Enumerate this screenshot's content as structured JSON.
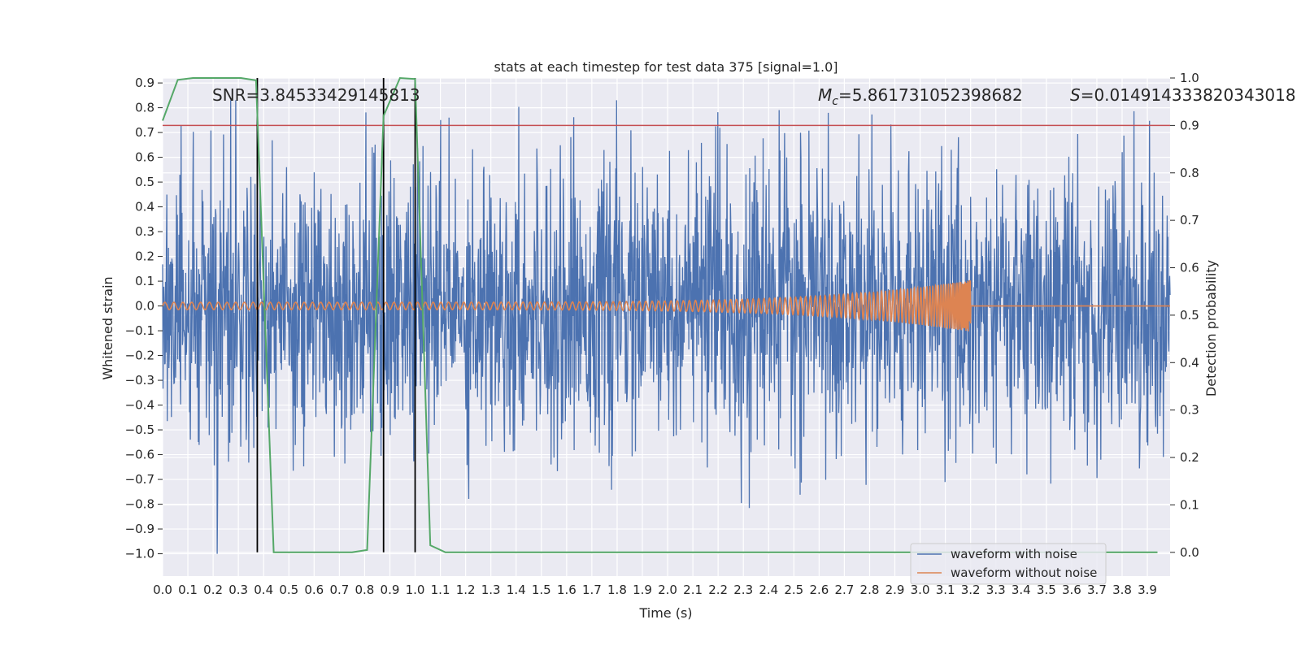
{
  "chart_data": {
    "type": "line",
    "title": "stats at each timestep for test data 375 [signal=1.0]",
    "xlabel": "Time (s)",
    "ylabel": "Whitened strain",
    "y2label": "Detection probability",
    "xlim": [
      0.0,
      3.99
    ],
    "ylim": [
      -1.09,
      0.92
    ],
    "y2lim": [
      -0.05,
      1.0
    ],
    "x_ticks": [
      "0.0",
      "0.1",
      "0.2",
      "0.3",
      "0.4",
      "0.5",
      "0.6",
      "0.7",
      "0.8",
      "0.9",
      "1.0",
      "1.1",
      "1.2",
      "1.3",
      "1.4",
      "1.5",
      "1.6",
      "1.7",
      "1.8",
      "1.9",
      "2.0",
      "2.1",
      "2.2",
      "2.3",
      "2.4",
      "2.5",
      "2.6",
      "2.7",
      "2.8",
      "2.9",
      "3.0",
      "3.1",
      "3.2",
      "3.3",
      "3.4",
      "3.5",
      "3.6",
      "3.7",
      "3.8",
      "3.9"
    ],
    "y_ticks": [
      "0.9",
      "0.8",
      "0.7",
      "0.6",
      "0.5",
      "0.4",
      "0.3",
      "0.2",
      "0.1",
      "0.0",
      "−0.1",
      "−0.2",
      "−0.3",
      "−0.4",
      "−0.5",
      "−0.6",
      "−0.7",
      "−0.8",
      "−0.9",
      "−1.0"
    ],
    "y2_ticks": [
      "1.0",
      "0.9",
      "0.8",
      "0.7",
      "0.6",
      "0.5",
      "0.4",
      "0.3",
      "0.2",
      "0.1",
      "0.0"
    ],
    "grid": true,
    "legend_position": "bottom-right",
    "annotations": {
      "snr": "SNR=3.84533429145813",
      "mc_symbol": "M",
      "mc_sub": "c",
      "mc_value": "=5.861731052398682",
      "s_symbol": "S",
      "s_value": "=0.014914333820343018"
    },
    "threshold": {
      "value": 0.9,
      "color": "#c44e52"
    },
    "vertical_lines": [
      0.375,
      0.875,
      1.0
    ],
    "series": [
      {
        "name": "waveform with noise",
        "color": "#4c72b0",
        "kind": "noise",
        "amplitude_std": 0.28,
        "peak_range": [
          -1.0,
          0.83
        ],
        "x_range": [
          0.0,
          3.99
        ]
      },
      {
        "name": "waveform without noise",
        "color": "#dd8452",
        "kind": "chirp",
        "start_amplitude": 0.015,
        "end_amplitude": 0.105,
        "merger_time": 3.2,
        "x_range": [
          0.0,
          3.99
        ]
      },
      {
        "name": "detection probability",
        "color": "#55a868",
        "axis": "right",
        "x": [
          0.0,
          0.06,
          0.12,
          0.31,
          0.37,
          0.44,
          0.75,
          0.81,
          0.875,
          0.94,
          1.0,
          1.06,
          1.12,
          3.94
        ],
        "y": [
          0.91,
          0.996,
          1.0,
          1.0,
          0.995,
          0.0,
          0.0,
          0.005,
          0.92,
          1.0,
          0.998,
          0.015,
          0.0,
          0.0
        ]
      }
    ]
  }
}
